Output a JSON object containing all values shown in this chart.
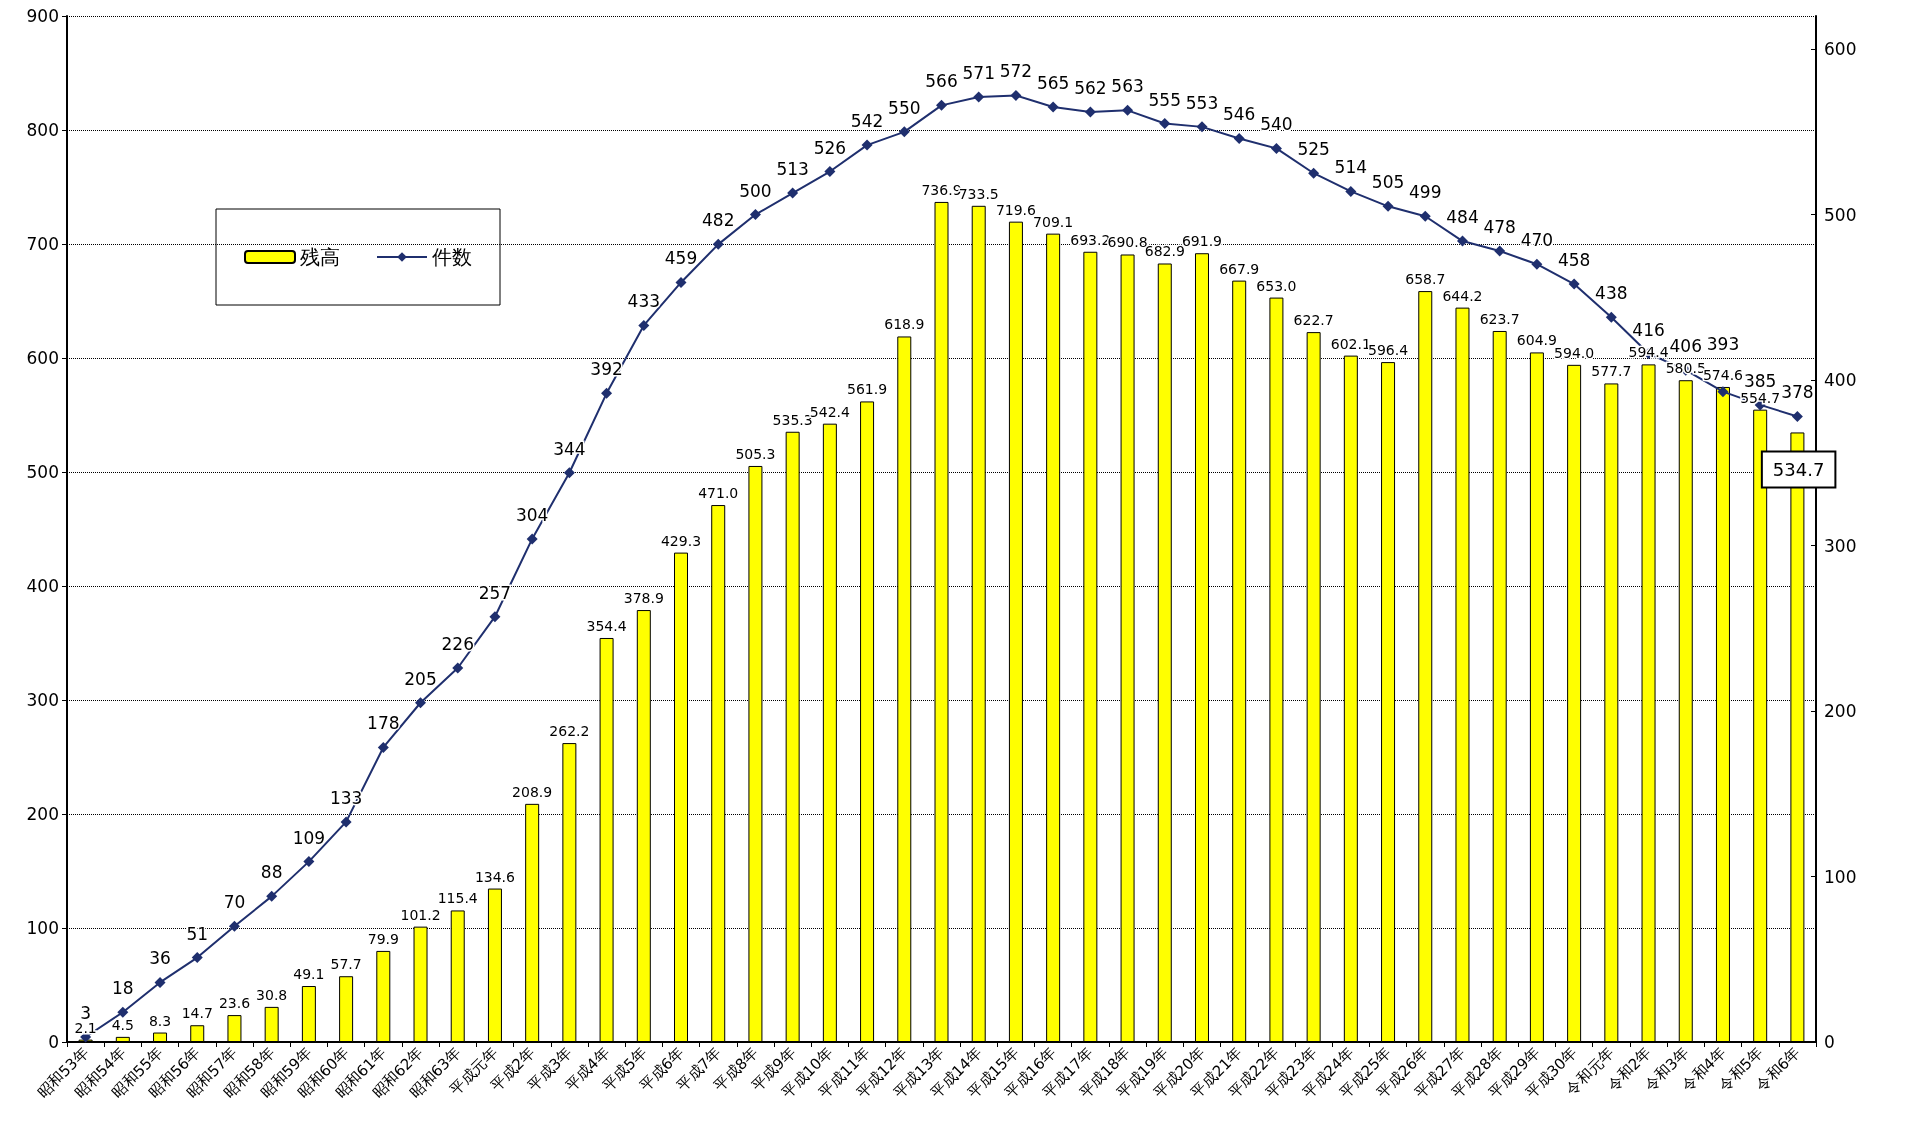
{
  "chart_data": {
    "type": "bar",
    "categories": [
      "昭和53年",
      "昭和54年",
      "昭和55年",
      "昭和56年",
      "昭和57年",
      "昭和58年",
      "昭和59年",
      "昭和60年",
      "昭和61年",
      "昭和62年",
      "昭和63年",
      "平成元年",
      "平成2年",
      "平成3年",
      "平成4年",
      "平成5年",
      "平成6年",
      "平成7年",
      "平成8年",
      "平成9年",
      "平成10年",
      "平成11年",
      "平成12年",
      "平成13年",
      "平成14年",
      "平成15年",
      "平成16年",
      "平成17年",
      "平成18年",
      "平成19年",
      "平成20年",
      "平成21年",
      "平成22年",
      "平成23年",
      "平成24年",
      "平成25年",
      "平成26年",
      "平成27年",
      "平成28年",
      "平成29年",
      "平成30年",
      "令和元年",
      "令和2年",
      "令和3年",
      "令和4年",
      "令和5年",
      "令和6年"
    ],
    "series": [
      {
        "name": "残高",
        "color": "#ffff00",
        "values": [
          2.1,
          4.5,
          8.3,
          14.7,
          23.6,
          30.8,
          49.1,
          57.7,
          79.9,
          101.2,
          115.4,
          134.6,
          208.9,
          262.2,
          354.4,
          378.9,
          429.3,
          471.0,
          505.3,
          535.3,
          542.4,
          561.9,
          618.9,
          736.9,
          733.5,
          719.6,
          709.1,
          693.2,
          690.8,
          682.9,
          691.9,
          667.9,
          653.0,
          622.7,
          602.1,
          596.4,
          658.7,
          644.2,
          623.7,
          604.9,
          594.0,
          577.7,
          594.4,
          580.5,
          574.6,
          554.7,
          534.7
        ],
        "value_labels": [
          "2.1",
          "4.5",
          "8.3",
          "14.7",
          "23.6",
          "30.8",
          "49.1",
          "57.7",
          "79.9",
          "101.2",
          "115.4",
          "134.6",
          "208.9",
          "262.2",
          "354.4",
          "378.9",
          "429.3",
          "471.0",
          "505.3",
          "535.3",
          "542.4",
          "561.9",
          "618.9",
          "736.9",
          "733.5",
          "719.6",
          "709.1",
          "693.2",
          "690.8",
          "682.9",
          "691.9",
          "667.9",
          "653.0",
          "622.7",
          "602.1",
          "596.4",
          "658.7",
          "644.2",
          "623.7",
          "604.9",
          "594.0",
          "577.7",
          "594.4",
          "580.5",
          "574.6",
          "554.7",
          null
        ]
      },
      {
        "name": "件数",
        "type": "line",
        "axis": "y2",
        "color": "#1f2f6e",
        "marker": "diamond",
        "values": [
          3,
          18,
          36,
          51,
          70,
          88,
          109,
          133,
          178,
          205,
          226,
          257,
          304,
          344,
          392,
          433,
          459,
          482,
          500,
          513,
          526,
          542,
          550,
          566,
          571,
          572,
          565,
          562,
          563,
          555,
          553,
          546,
          540,
          525,
          514,
          505,
          499,
          484,
          478,
          470,
          458,
          438,
          416,
          406,
          393,
          385,
          378
        ],
        "value_labels": [
          "3",
          "18",
          "36",
          "51",
          "70",
          "88",
          "109",
          "133",
          "178",
          "205",
          "226",
          "257",
          "304",
          "344",
          "392",
          "433",
          "459",
          "482",
          "500",
          "513",
          "526",
          "542",
          "550",
          "566",
          "571",
          "572",
          "565",
          "562",
          "563",
          "555",
          "553",
          "546",
          "540",
          "525",
          "514",
          "505",
          "499",
          "484",
          "478",
          "470",
          "458",
          "438",
          "416",
          "406",
          "393",
          "385",
          "378"
        ]
      }
    ],
    "annotations": [
      {
        "text": "534.7",
        "x": "令和6年",
        "y": 534.7
      }
    ],
    "ylim": [
      0,
      900
    ],
    "yticks": [
      0,
      100,
      200,
      300,
      400,
      500,
      600,
      700,
      800,
      900
    ],
    "y2lim": [
      0,
      620
    ],
    "y2ticks": [
      0,
      100,
      200,
      300,
      400,
      500,
      600
    ],
    "grid": "y",
    "legend": "top left"
  }
}
